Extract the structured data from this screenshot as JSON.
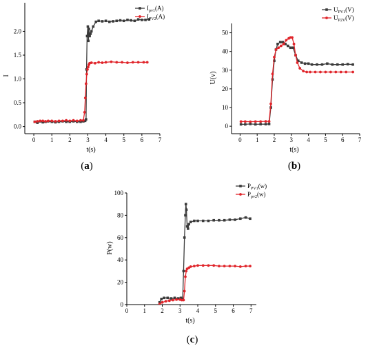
{
  "chart_data": [
    {
      "type": "line",
      "panel_label": "(a)",
      "xlabel": "t(s)",
      "ylabel": "I",
      "xlim": [
        -0.5,
        7
      ],
      "ylim": [
        -0.15,
        2.6
      ],
      "xticks": [
        "0",
        "1",
        "2",
        "3",
        "4",
        "5",
        "6",
        "7"
      ],
      "yticks": [
        "0.0",
        "0.5",
        "1.0",
        "1.5",
        "2.0"
      ],
      "grid": false,
      "legend": "top-right",
      "series": [
        {
          "name": "I_pv1(A)",
          "legend_main": "I",
          "legend_sub": "pv1",
          "legend_unit": "(A)",
          "color": "#3a3a3a",
          "marker": "square",
          "x": [
            0.05,
            0.2,
            0.35,
            0.5,
            0.65,
            0.8,
            1.0,
            1.2,
            1.4,
            1.6,
            1.8,
            2.0,
            2.2,
            2.4,
            2.6,
            2.75,
            2.85,
            2.9,
            2.93,
            2.96,
            3.0,
            3.03,
            3.06,
            3.1,
            3.15,
            3.2,
            3.3,
            3.45,
            3.6,
            3.8,
            4.0,
            4.2,
            4.4,
            4.6,
            4.8,
            5.0,
            5.2,
            5.4,
            5.6,
            5.8,
            6.0,
            6.2,
            6.4
          ],
          "y": [
            0.1,
            0.08,
            0.11,
            0.09,
            0.1,
            0.11,
            0.1,
            0.09,
            0.1,
            0.11,
            0.1,
            0.1,
            0.11,
            0.1,
            0.1,
            0.11,
            0.12,
            0.15,
            1.2,
            1.9,
            2.1,
            1.8,
            2.05,
            1.9,
            1.95,
            2.0,
            2.1,
            2.2,
            2.22,
            2.21,
            2.22,
            2.2,
            2.21,
            2.22,
            2.23,
            2.22,
            2.24,
            2.23,
            2.22,
            2.25,
            2.24,
            2.24,
            2.25
          ]
        },
        {
          "name": "I_PV2(A)",
          "legend_main": "I",
          "legend_sub": "PV2",
          "legend_unit": "(A)",
          "color": "#e0242a",
          "marker": "circle",
          "x": [
            0.05,
            0.2,
            0.35,
            0.5,
            0.65,
            0.8,
            1.0,
            1.2,
            1.4,
            1.6,
            1.8,
            2.0,
            2.2,
            2.4,
            2.6,
            2.75,
            2.82,
            2.86,
            2.9,
            2.94,
            2.98,
            3.02,
            3.06,
            3.1,
            3.2,
            3.4,
            3.6,
            3.8,
            4.0,
            4.3,
            4.6,
            4.9,
            5.2,
            5.5,
            5.8,
            6.1,
            6.3
          ],
          "y": [
            0.1,
            0.11,
            0.12,
            0.12,
            0.11,
            0.12,
            0.12,
            0.11,
            0.12,
            0.12,
            0.13,
            0.12,
            0.13,
            0.12,
            0.13,
            0.13,
            0.3,
            0.6,
            0.9,
            1.1,
            1.2,
            1.25,
            1.3,
            1.33,
            1.34,
            1.33,
            1.35,
            1.34,
            1.35,
            1.36,
            1.35,
            1.35,
            1.34,
            1.35,
            1.35,
            1.35,
            1.35
          ]
        }
      ]
    },
    {
      "type": "line",
      "panel_label": "(b)",
      "xlabel": "t(s)",
      "ylabel": "U(v)",
      "xlim": [
        -0.5,
        7
      ],
      "ylim": [
        -4,
        55
      ],
      "xticks": [
        "0",
        "1",
        "2",
        "3",
        "4",
        "5",
        "6",
        "7"
      ],
      "yticks": [
        "0",
        "10",
        "20",
        "30",
        "40",
        "50"
      ],
      "grid": false,
      "legend": "top-right",
      "series": [
        {
          "name": "U_PV1(V)",
          "legend_main": "U",
          "legend_sub": "PV1",
          "legend_unit": "(V)",
          "color": "#3a3a3a",
          "marker": "square",
          "x": [
            0.05,
            0.3,
            0.6,
            0.9,
            1.2,
            1.5,
            1.7,
            1.8,
            1.9,
            2.0,
            2.1,
            2.2,
            2.35,
            2.5,
            2.65,
            2.8,
            2.95,
            3.1,
            3.25,
            3.4,
            3.6,
            3.8,
            4.0,
            4.2,
            4.5,
            4.8,
            5.1,
            5.4,
            5.7,
            6.0,
            6.3,
            6.6
          ],
          "y": [
            1,
            1,
            1.2,
            1,
            1.1,
            1.1,
            1.2,
            10,
            25,
            35,
            41,
            44,
            45,
            45,
            44,
            43,
            42,
            42,
            38,
            35,
            34,
            33.5,
            33.5,
            33,
            33,
            33,
            33.5,
            33,
            33,
            33,
            33.2,
            33
          ],
          "y_note": ""
        },
        {
          "name": "U_P2V(V)",
          "legend_main": "U",
          "legend_sub": "P2V",
          "legend_unit": "(V)",
          "color": "#e0242a",
          "marker": "circle",
          "x": [
            0.05,
            0.3,
            0.6,
            0.9,
            1.2,
            1.5,
            1.7,
            1.8,
            1.9,
            2.0,
            2.1,
            2.25,
            2.4,
            2.55,
            2.7,
            2.85,
            2.95,
            3.05,
            3.15,
            3.25,
            3.35,
            3.5,
            3.7,
            3.9,
            4.1,
            4.4,
            4.7,
            5.0,
            5.3,
            5.6,
            5.9,
            6.2,
            6.6
          ],
          "y": [
            2.5,
            2.5,
            2.4,
            2.5,
            2.5,
            2.6,
            2.6,
            12,
            28,
            37,
            41,
            42,
            43,
            44,
            46,
            47,
            47.5,
            47.5,
            44,
            38,
            34,
            31,
            29.5,
            29,
            29,
            29,
            29,
            29,
            29,
            29,
            29,
            29,
            29
          ]
        }
      ]
    },
    {
      "type": "line",
      "panel_label": "(c)",
      "xlabel": "t(s)",
      "ylabel": "P(w)",
      "xlim": [
        0,
        7.3
      ],
      "ylim": [
        0,
        100
      ],
      "xticks": [
        "0",
        "1",
        "2",
        "3",
        "4",
        "5",
        "6",
        "7"
      ],
      "yticks": [
        "0",
        "20",
        "40",
        "60",
        "80",
        "100"
      ],
      "grid": false,
      "legend": "top-right",
      "series": [
        {
          "name": "P_PV1(w)",
          "legend_main": "P",
          "legend_sub": "PV1",
          "legend_unit": "(w)",
          "color": "#3a3a3a",
          "marker": "square",
          "x": [
            1.85,
            1.95,
            2.1,
            2.3,
            2.5,
            2.7,
            2.9,
            3.05,
            3.15,
            3.2,
            3.25,
            3.3,
            3.33,
            3.36,
            3.4,
            3.45,
            3.5,
            3.6,
            3.8,
            4.0,
            4.3,
            4.6,
            4.9,
            5.2,
            5.5,
            5.8,
            6.1,
            6.4,
            6.7,
            6.95
          ],
          "y": [
            2,
            5,
            6,
            6,
            5.5,
            6,
            5.5,
            6,
            5,
            30,
            60,
            80,
            90,
            85,
            70,
            68,
            72,
            74,
            75,
            75,
            75,
            75,
            75.5,
            75.5,
            75.5,
            76,
            76,
            77,
            78,
            77
          ]
        },
        {
          "name": "P_pv2(w)",
          "legend_main": "P",
          "legend_sub": "pv2",
          "legend_unit": "(w)",
          "color": "#e0242a",
          "marker": "circle",
          "x": [
            1.85,
            2.0,
            2.2,
            2.4,
            2.6,
            2.8,
            3.0,
            3.1,
            3.2,
            3.25,
            3.3,
            3.35,
            3.4,
            3.5,
            3.6,
            3.8,
            4.0,
            4.3,
            4.6,
            4.9,
            5.2,
            5.5,
            5.8,
            6.1,
            6.4,
            6.7,
            6.95
          ],
          "y": [
            0.5,
            2,
            3,
            3.5,
            4,
            4.5,
            4.5,
            4,
            4,
            12,
            25,
            30,
            32,
            33,
            34,
            34.5,
            35,
            35,
            35,
            35,
            34.5,
            34.5,
            34.5,
            34.5,
            34,
            34.5,
            34.5
          ]
        }
      ]
    }
  ]
}
